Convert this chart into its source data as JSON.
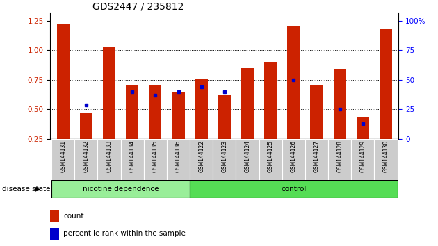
{
  "title": "GDS2447 / 235812",
  "samples": [
    "GSM144131",
    "GSM144132",
    "GSM144133",
    "GSM144134",
    "GSM144135",
    "GSM144136",
    "GSM144122",
    "GSM144123",
    "GSM144124",
    "GSM144125",
    "GSM144126",
    "GSM144127",
    "GSM144128",
    "GSM144129",
    "GSM144130"
  ],
  "red_values": [
    1.22,
    0.47,
    1.03,
    0.71,
    0.7,
    0.65,
    0.76,
    0.62,
    0.85,
    0.9,
    1.2,
    0.71,
    0.84,
    0.44,
    1.18
  ],
  "blue_values": [
    null,
    0.54,
    null,
    0.65,
    0.62,
    0.65,
    0.69,
    0.65,
    null,
    null,
    0.75,
    null,
    0.5,
    0.38,
    null
  ],
  "group1_label": "nicotine dependence",
  "group2_label": "control",
  "group1_count": 6,
  "group2_count": 9,
  "yticks_left": [
    0.25,
    0.5,
    0.75,
    1.0,
    1.25
  ],
  "yticks_right_labels": [
    "0",
    "25",
    "50",
    "75",
    "100%"
  ],
  "ymin": 0.25,
  "ymax": 1.32,
  "red_color": "#CC2200",
  "blue_color": "#0000CC",
  "group_bg_color1": "#99EE99",
  "group_bg_color2": "#55DD55",
  "tick_label_bg": "#CCCCCC",
  "legend_count_label": "count",
  "legend_pct_label": "percentile rank within the sample",
  "disease_state_label": "disease state"
}
